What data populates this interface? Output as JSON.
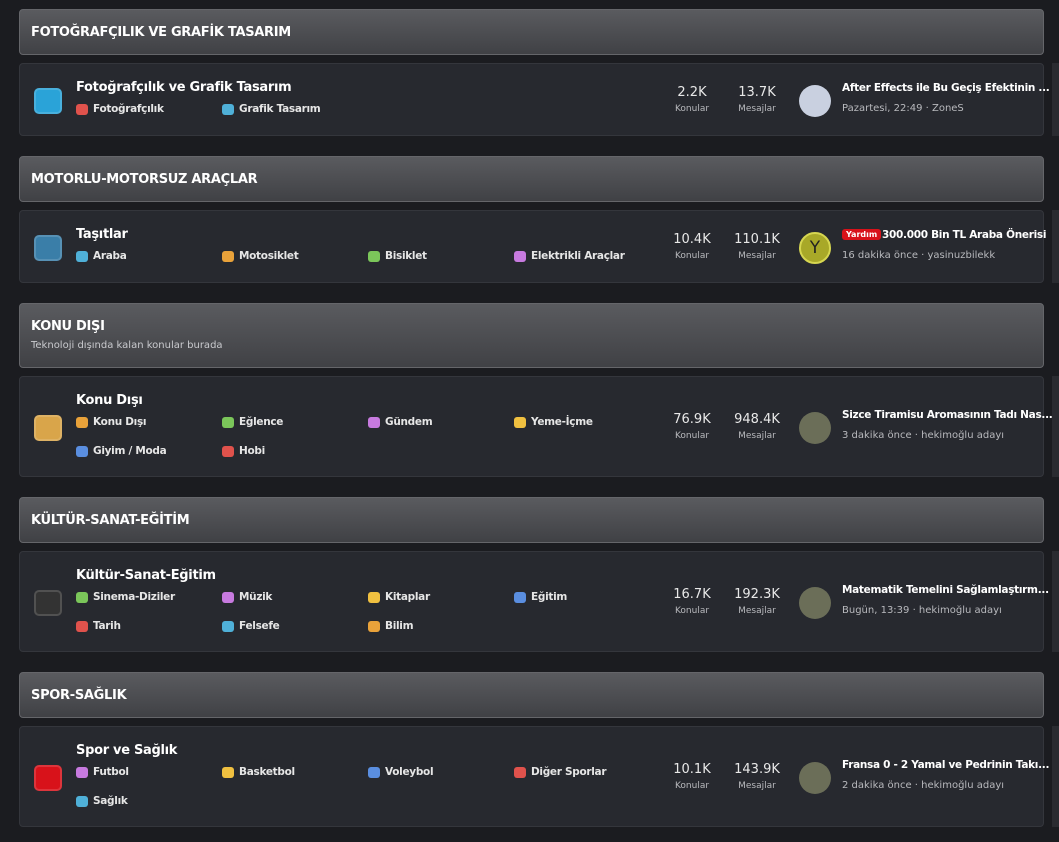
{
  "sections": [
    {
      "title": "FOTOĞRAFÇILIK VE GRAFİK TASARIM",
      "forum": {
        "title": "Fotoğrafçılık ve Grafik Tasarım",
        "subforums": [
          "Fotoğrafçılık",
          "Grafik Tasarım"
        ],
        "stats": [
          {
            "value": "2.2K",
            "label": "Konular"
          },
          {
            "value": "13.7K",
            "label": "Mesajlar"
          }
        ],
        "last_post": {
          "title": "After Effects ile Bu Geçiş Efektinin ...",
          "meta": "Pazartesi, 22:49 · ZoneS"
        }
      }
    },
    {
      "title": "MOTORLU-MOTORSUZ ARAÇLAR",
      "forum": {
        "title": "Taşıtlar",
        "subforums": [
          "Araba",
          "Motosiklet",
          "Bisiklet",
          "Elektrikli Araçlar"
        ],
        "stats": [
          {
            "value": "10.4K",
            "label": "Konular"
          },
          {
            "value": "110.1K",
            "label": "Mesajlar"
          }
        ],
        "last_post": {
          "prefix": "Yardım",
          "title": "300.000 Bin TL Araba Önerisi",
          "meta": "16 dakika önce · yasinuzbilekk",
          "avatar_letter": "Y"
        }
      }
    },
    {
      "title": "KONU DIŞI",
      "description": "Teknoloji dışında kalan konular burada",
      "forum": {
        "title": "Konu Dışı",
        "subforums": [
          "Konu Dışı",
          "Eğlence",
          "Gündem",
          "Yeme-İçme",
          "Giyim / Moda",
          "Hobi"
        ],
        "stats": [
          {
            "value": "76.9K",
            "label": "Konular"
          },
          {
            "value": "948.4K",
            "label": "Mesajlar"
          }
        ],
        "last_post": {
          "title": "Sizce Tiramisu Aromasının Tadı Nas...",
          "meta": "3 dakika önce · hekimoğlu adayı"
        }
      }
    },
    {
      "title": "KÜLTÜR-SANAT-EĞİTİM",
      "forum": {
        "title": "Kültür-Sanat-Eğitim",
        "subforums": [
          "Sinema-Diziler",
          "Müzik",
          "Kitaplar",
          "Eğitim",
          "Tarih",
          "Felsefe",
          "Bilim"
        ],
        "stats": [
          {
            "value": "16.7K",
            "label": "Konular"
          },
          {
            "value": "192.3K",
            "label": "Mesajlar"
          }
        ],
        "last_post": {
          "title": "Matematik Temelini Sağlamlaştırm...",
          "meta": "Bugün, 13:39 · hekimoğlu adayı"
        }
      }
    },
    {
      "title": "SPOR-SAĞLIK",
      "forum": {
        "title": "Spor ve Sağlık",
        "subforums": [
          "Futbol",
          "Basketbol",
          "Voleybol",
          "Diğer Sporlar",
          "Sağlık"
        ],
        "stats": [
          {
            "value": "10.1K",
            "label": "Konular"
          },
          {
            "value": "143.9K",
            "label": "Mesajlar"
          }
        ],
        "last_post": {
          "title": "Fransa 0 - 2 Yamal ve Pedrinin Takı...",
          "meta": "2 dakika önce · hekimoğlu adayı"
        }
      }
    }
  ]
}
